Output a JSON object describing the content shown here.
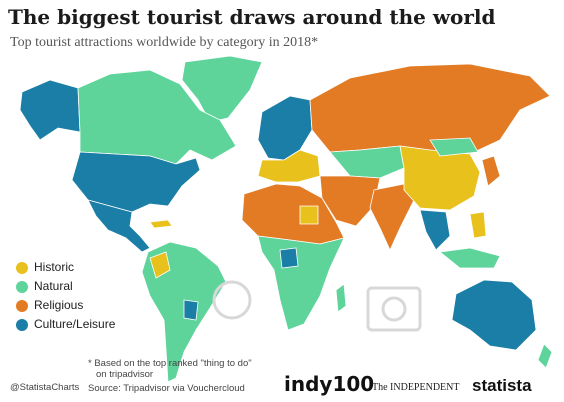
{
  "header": {
    "title": "The biggest tourist draws around the world",
    "subtitle": "Top tourist attractions worldwide by category in 2018*"
  },
  "legend": {
    "items": [
      {
        "label": "Historic",
        "color": "#e8c11c"
      },
      {
        "label": "Natural",
        "color": "#5ed49b"
      },
      {
        "label": "Religious",
        "color": "#e27b24"
      },
      {
        "label": "Culture/Leisure",
        "color": "#1b7ea6"
      }
    ]
  },
  "footnote": {
    "line1": "* Based on the top ranked \"thing to do\"",
    "line2": "on tripadvisor"
  },
  "footer": {
    "credit": "@StatistaCharts",
    "source": "Source: Tripadvisor via Vouchercloud",
    "logo_indy": "indy100",
    "logo_independent": "The INDEPENDENT",
    "logo_statista": "statista"
  }
}
